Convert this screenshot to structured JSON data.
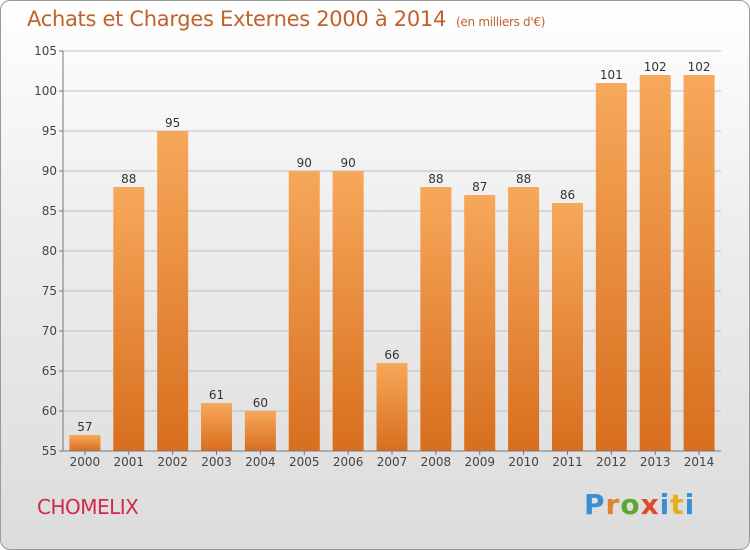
{
  "title": "Achats et Charges Externes 2000 à 2014",
  "subtitle": "(en milliers d'€)",
  "commune": "CHOMELIX",
  "logo": {
    "letters": [
      "P",
      "r",
      "o",
      "x",
      "i",
      "t",
      "i"
    ],
    "colors": [
      "#3a8fd0",
      "#e0832a",
      "#5aa830",
      "#e04a2a",
      "#3a8fd0",
      "#e0b020",
      "#3a8fd0"
    ]
  },
  "colors": {
    "bar_light": "#f7a85a",
    "bar_dark": "#d86e1e",
    "grid": "#bfbfbf",
    "axis_text": "#444444"
  },
  "chart_data": {
    "type": "bar",
    "categories": [
      "2000",
      "2001",
      "2002",
      "2003",
      "2004",
      "2005",
      "2006",
      "2007",
      "2008",
      "2009",
      "2010",
      "2011",
      "2012",
      "2013",
      "2014"
    ],
    "values": [
      57,
      88,
      95,
      61,
      60,
      90,
      90,
      66,
      88,
      87,
      88,
      86,
      101,
      102,
      102
    ],
    "yticks": [
      55,
      60,
      65,
      70,
      75,
      80,
      85,
      90,
      95,
      100,
      105
    ],
    "ylim": [
      55,
      105
    ],
    "grid": true
  }
}
